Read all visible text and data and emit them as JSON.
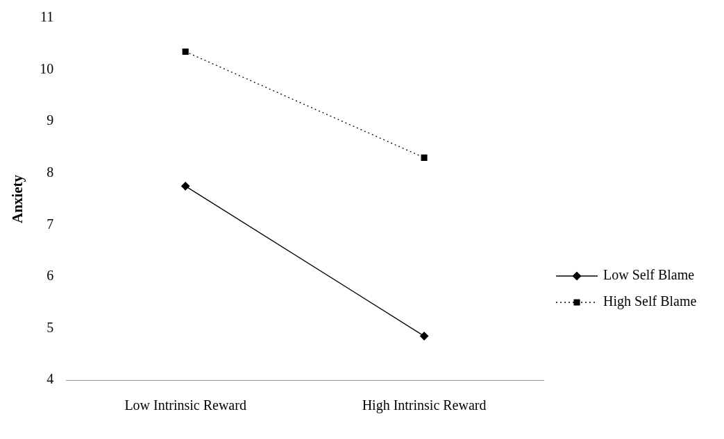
{
  "chart_data": {
    "type": "line",
    "ylabel": "Anxiety",
    "categories": [
      "Low Intrinsic Reward",
      "High Intrinsic Reward"
    ],
    "series": [
      {
        "name": "Low Self Blame",
        "color": "#000000",
        "values": [
          7.75,
          4.85
        ],
        "marker": "diamond",
        "line_style": "solid"
      },
      {
        "name": "High Self Blame",
        "color": "#000000",
        "values": [
          10.35,
          8.3
        ],
        "marker": "square",
        "line_style": "dotted"
      }
    ],
    "ylim": [
      4,
      11
    ],
    "yticks": [
      4,
      5,
      6,
      7,
      8,
      9,
      10,
      11
    ],
    "grid": false,
    "legend": "right"
  }
}
